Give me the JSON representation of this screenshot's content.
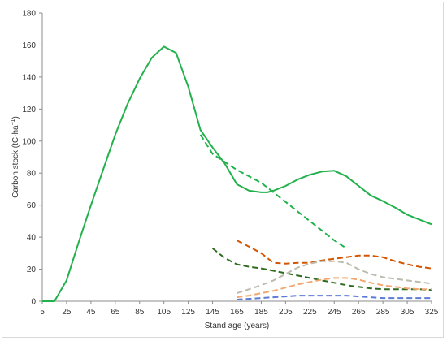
{
  "chart_data": {
    "type": "line",
    "xlabel": "Stand age (years)",
    "ylabel": "Carbon stock (tC·ha",
    "ylabel_sup": "−1",
    "ylabel_close": ")",
    "xlim": [
      5,
      325
    ],
    "ylim": [
      0,
      180
    ],
    "x_ticks": [
      5,
      25,
      45,
      65,
      85,
      105,
      125,
      145,
      165,
      185,
      205,
      225,
      245,
      265,
      285,
      305,
      325
    ],
    "y_ticks": [
      0,
      20,
      40,
      60,
      80,
      100,
      120,
      140,
      160,
      180
    ],
    "grid": false,
    "legend": false,
    "series": [
      {
        "color": "#22b14c",
        "style": "solid",
        "width": 2,
        "x": [
          5,
          15,
          25,
          35,
          45,
          55,
          65,
          75,
          85,
          95,
          105,
          115,
          125,
          135,
          145,
          155,
          165,
          175,
          185,
          190,
          195,
          205,
          215,
          225,
          235,
          245,
          255,
          265,
          275,
          285,
          295,
          305,
          315,
          325
        ],
        "y": [
          0,
          0,
          13,
          37,
          60,
          82,
          104,
          123,
          139,
          152,
          159,
          155,
          134,
          107,
          96,
          86,
          73,
          69,
          68,
          68,
          69,
          72,
          76,
          79,
          81,
          81.5,
          78,
          72,
          66,
          62.5,
          58.5,
          54,
          51,
          48
        ]
      },
      {
        "color": "#22b14c",
        "style": "dashed",
        "width": 2,
        "x": [
          135,
          145,
          155,
          165,
          175,
          185,
          195,
          205,
          215,
          225,
          235,
          245,
          255
        ],
        "y": [
          104,
          92,
          87,
          82,
          78,
          74,
          68,
          62,
          56,
          50,
          44,
          38,
          33
        ]
      },
      {
        "color": "#2e6b1f",
        "style": "dashed",
        "width": 2,
        "x": [
          145,
          155,
          165,
          175,
          185,
          195,
          205,
          215,
          225,
          235,
          245,
          255,
          265,
          275,
          285,
          295,
          305,
          315,
          325
        ],
        "y": [
          33,
          27,
          23,
          21.5,
          20.5,
          19,
          17.5,
          16,
          14.5,
          13,
          11.5,
          10,
          9,
          8,
          7.5,
          7.5,
          7.5,
          7.5,
          7
        ]
      },
      {
        "color": "#d45500",
        "style": "dashed",
        "width": 2,
        "x": [
          165,
          175,
          185,
          195,
          205,
          215,
          225,
          235,
          245,
          255,
          265,
          275,
          285,
          295,
          305,
          315,
          325
        ],
        "y": [
          38,
          34,
          30,
          24,
          23.5,
          24,
          24,
          25.5,
          26.5,
          27.5,
          28.5,
          28.5,
          27.5,
          25,
          23,
          21.5,
          20.5
        ]
      },
      {
        "color": "#bcbcae",
        "style": "dashed",
        "width": 2,
        "x": [
          165,
          175,
          185,
          195,
          205,
          215,
          225,
          235,
          245,
          255,
          265,
          275,
          285,
          295,
          305,
          315,
          325
        ],
        "y": [
          5,
          7.5,
          10,
          13,
          17,
          21,
          23.5,
          25,
          25,
          24,
          20,
          17,
          15,
          14,
          13,
          12,
          11
        ]
      },
      {
        "color": "#f4a76f",
        "style": "dashed",
        "width": 2,
        "x": [
          165,
          175,
          185,
          195,
          205,
          215,
          225,
          235,
          245,
          255,
          265,
          275,
          285,
          295,
          305,
          315,
          325
        ],
        "y": [
          2.5,
          3.5,
          5,
          6.5,
          8.5,
          10.5,
          12,
          13.5,
          14.5,
          14.5,
          13.5,
          11.5,
          10,
          9,
          8,
          7.5,
          7.5
        ]
      },
      {
        "color": "#5b7bd5",
        "style": "dashed",
        "width": 2,
        "x": [
          165,
          175,
          185,
          195,
          205,
          215,
          225,
          235,
          245,
          255,
          265,
          275,
          285,
          295,
          305,
          315,
          325
        ],
        "y": [
          1,
          1.5,
          2,
          2.5,
          3,
          3.5,
          3.5,
          3.5,
          3.5,
          3.5,
          3,
          2.5,
          2,
          2,
          2,
          2,
          2
        ]
      }
    ]
  }
}
